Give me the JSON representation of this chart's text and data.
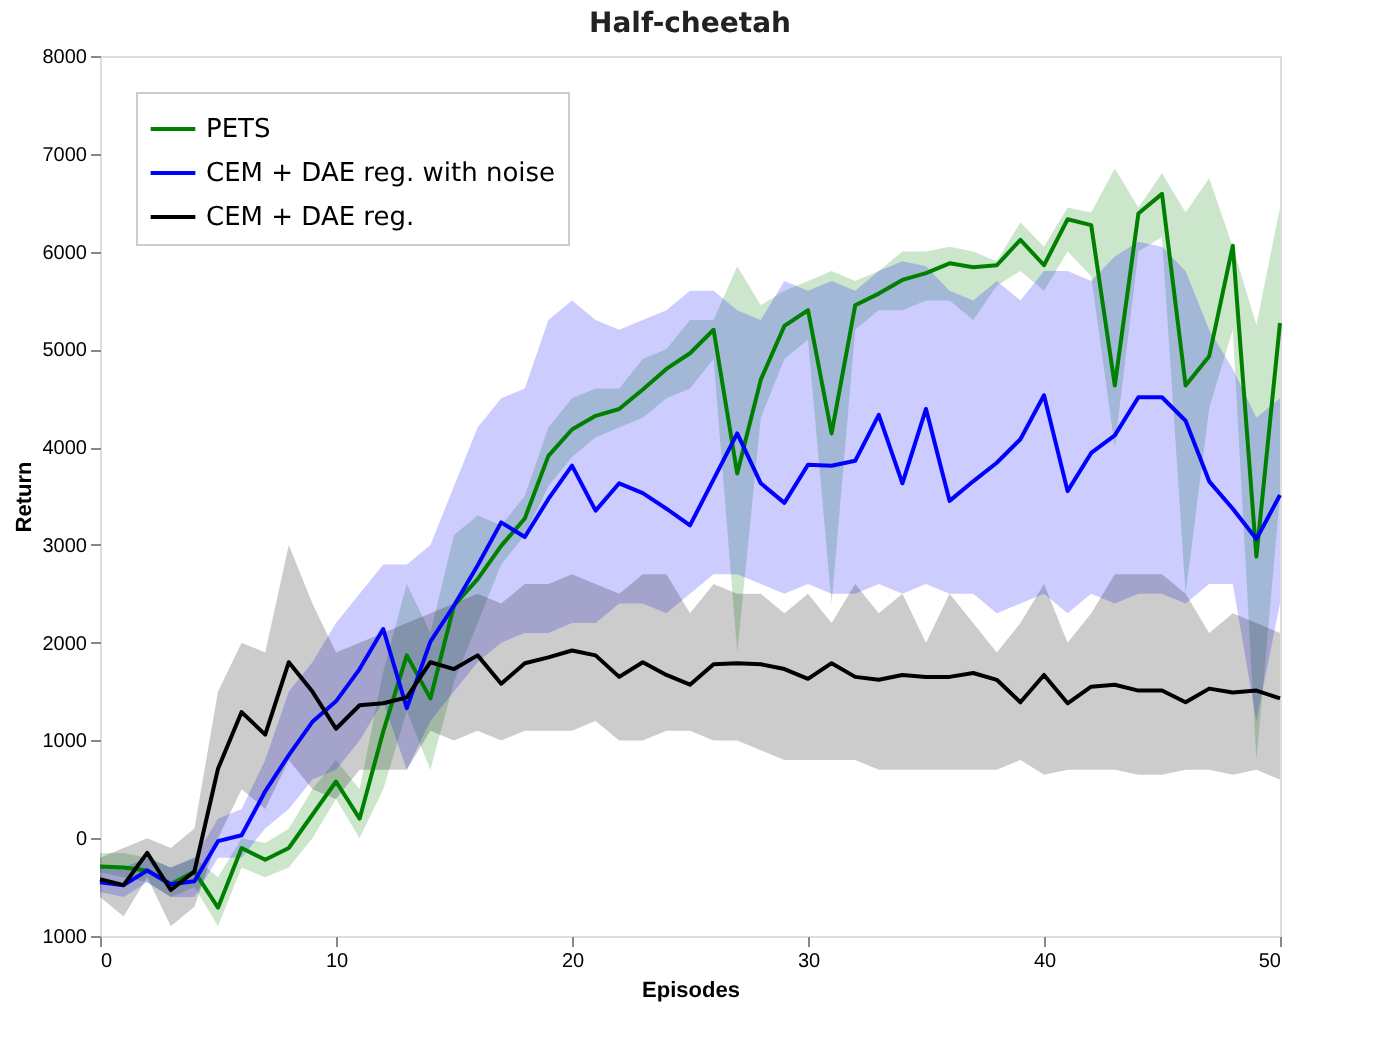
{
  "chart_data": {
    "type": "line",
    "title": "Half-cheetah",
    "xlabel": "Episodes",
    "ylabel": "Return",
    "x": [
      0,
      1,
      2,
      3,
      4,
      5,
      6,
      7,
      8,
      9,
      10,
      11,
      12,
      13,
      14,
      15,
      16,
      17,
      18,
      19,
      20,
      21,
      22,
      23,
      24,
      25,
      26,
      27,
      28,
      29,
      30,
      31,
      32,
      33,
      34,
      35,
      36,
      37,
      38,
      39,
      40,
      41,
      42,
      43,
      44,
      45,
      46,
      47,
      48,
      49,
      50
    ],
    "series": [
      {
        "name": "PETS",
        "color": "#008000",
        "values": [
          -290,
          -300,
          -330,
          -470,
          -340,
          -710,
          -100,
          -220,
          -100,
          240,
          580,
          200,
          1090,
          1870,
          1430,
          2380,
          2650,
          2990,
          3270,
          3910,
          4180,
          4320,
          4390,
          4590,
          4800,
          4960,
          5200,
          3730,
          4690,
          5240,
          5400,
          4140,
          5450,
          5570,
          5710,
          5780,
          5880,
          5840,
          5860,
          6120,
          5860,
          6330,
          6270,
          4630,
          6390,
          6590,
          4630,
          4930,
          6060,
          2880,
          5270
        ],
        "lower": [
          -350,
          -400,
          -450,
          -600,
          -500,
          -900,
          -300,
          -400,
          -300,
          0,
          400,
          0,
          500,
          1300,
          700,
          1600,
          2200,
          2800,
          3100,
          3600,
          3900,
          4100,
          4200,
          4300,
          4500,
          4600,
          4900,
          1900,
          4300,
          4900,
          5100,
          2400,
          5200,
          5400,
          5400,
          5500,
          5500,
          5300,
          5650,
          5800,
          5600,
          6000,
          5750,
          4000,
          6000,
          6150,
          2500,
          4400,
          5200,
          800,
          3500
        ],
        "upper": [
          -150,
          -150,
          -200,
          -300,
          -200,
          -400,
          0,
          -50,
          100,
          500,
          800,
          500,
          1700,
          2600,
          2100,
          3100,
          3300,
          3200,
          3500,
          4200,
          4500,
          4600,
          4600,
          4900,
          5000,
          5300,
          5300,
          5850,
          5450,
          5600,
          5700,
          5800,
          5700,
          5800,
          6000,
          6000,
          6050,
          6000,
          5900,
          6300,
          6050,
          6450,
          6400,
          6850,
          6450,
          6800,
          6400,
          6750,
          6050,
          5250,
          6450
        ]
      },
      {
        "name": "CEM + DAE reg. with noise",
        "color": "#0000ff",
        "values": [
          -450,
          -480,
          -330,
          -470,
          -440,
          -30,
          30,
          480,
          850,
          1190,
          1400,
          1730,
          2140,
          1330,
          2010,
          2380,
          2790,
          3230,
          3080,
          3470,
          3810,
          3350,
          3630,
          3530,
          3370,
          3200,
          3670,
          4140,
          3630,
          3430,
          3820,
          3810,
          3860,
          4330,
          3630,
          4390,
          3450,
          3650,
          3840,
          4080,
          4530,
          3550,
          3940,
          4120,
          4510,
          4510,
          4270,
          3650,
          3370,
          3060,
          3510
        ],
        "lower": [
          -550,
          -600,
          -450,
          -600,
          -600,
          -200,
          -200,
          100,
          300,
          600,
          700,
          1000,
          1400,
          700,
          1200,
          1500,
          1800,
          2000,
          2100,
          2100,
          2200,
          2200,
          2400,
          2400,
          2300,
          2500,
          2700,
          2700,
          2600,
          2500,
          2600,
          2500,
          2500,
          2600,
          2500,
          2600,
          2500,
          2500,
          2300,
          2400,
          2500,
          2300,
          2500,
          2400,
          2500,
          2500,
          2400,
          2600,
          2600,
          1200,
          2400
        ],
        "upper": [
          -300,
          -300,
          -200,
          -300,
          -200,
          200,
          300,
          800,
          1500,
          1800,
          2200,
          2500,
          2800,
          2800,
          3000,
          3600,
          4200,
          4500,
          4600,
          5300,
          5500,
          5300,
          5200,
          5300,
          5400,
          5600,
          5600,
          5400,
          5300,
          5700,
          5600,
          5700,
          5600,
          5800,
          5900,
          5850,
          5600,
          5500,
          5700,
          5500,
          5800,
          5800,
          5700,
          5950,
          6100,
          6050,
          5800,
          5200,
          4800,
          4300,
          4500
        ]
      },
      {
        "name": "CEM + DAE reg.",
        "color": "#000000",
        "values": [
          -420,
          -480,
          -150,
          -530,
          -340,
          710,
          1290,
          1060,
          1800,
          1500,
          1120,
          1360,
          1380,
          1440,
          1800,
          1730,
          1870,
          1580,
          1790,
          1850,
          1920,
          1870,
          1650,
          1800,
          1670,
          1570,
          1780,
          1790,
          1780,
          1730,
          1630,
          1790,
          1650,
          1620,
          1670,
          1650,
          1650,
          1690,
          1620,
          1390,
          1670,
          1380,
          1550,
          1570,
          1510,
          1510,
          1390,
          1530,
          1490,
          1510,
          1430
        ],
        "lower": [
          -600,
          -800,
          -400,
          -900,
          -700,
          0,
          500,
          300,
          800,
          500,
          400,
          700,
          700,
          700,
          1100,
          1000,
          1100,
          1000,
          1100,
          1100,
          1100,
          1200,
          1000,
          1000,
          1100,
          1100,
          1000,
          1000,
          900,
          800,
          800,
          800,
          800,
          700,
          700,
          700,
          700,
          700,
          700,
          800,
          650,
          700,
          700,
          700,
          650,
          650,
          700,
          700,
          650,
          700,
          600
        ],
        "upper": [
          -200,
          -100,
          0,
          -100,
          100,
          1500,
          2000,
          1900,
          3000,
          2400,
          1900,
          2000,
          2100,
          2200,
          2300,
          2400,
          2500,
          2400,
          2600,
          2600,
          2700,
          2600,
          2500,
          2700,
          2700,
          2300,
          2600,
          2500,
          2500,
          2300,
          2500,
          2200,
          2600,
          2300,
          2500,
          2000,
          2500,
          2200,
          1900,
          2200,
          2600,
          2000,
          2300,
          2700,
          2700,
          2700,
          2500,
          2100,
          2300,
          2200,
          2100
        ]
      }
    ],
    "xlim": [
      0,
      50
    ],
    "xticks": [
      0,
      10,
      20,
      30,
      40,
      50
    ],
    "ylim": [
      -1000,
      8000
    ],
    "yticks": [
      {
        "value": -1000,
        "label": "1000"
      },
      0,
      1000,
      2000,
      3000,
      4000,
      5000,
      6000,
      7000,
      8000
    ],
    "legend": "top left",
    "grid": false
  }
}
